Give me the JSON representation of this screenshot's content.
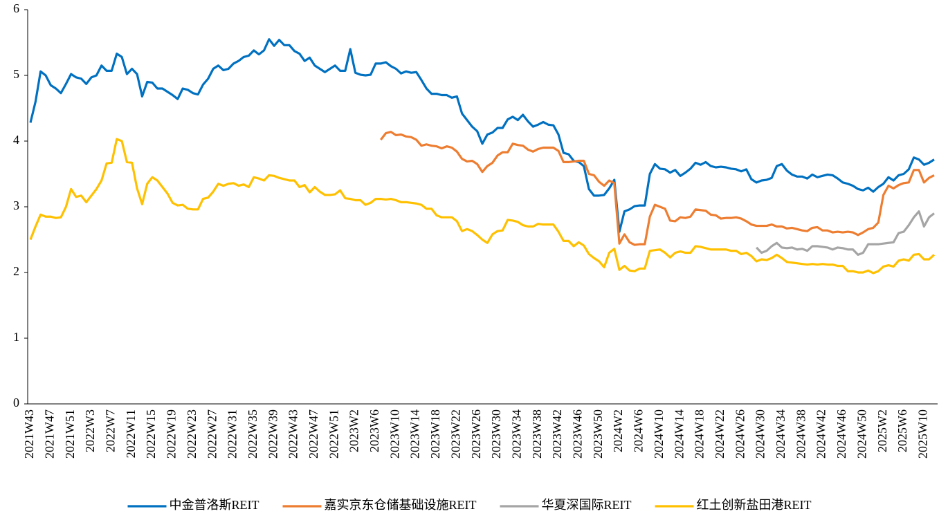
{
  "chart_data": {
    "type": "line",
    "categories": [
      "2021W43",
      null,
      null,
      null,
      "2021W47",
      null,
      null,
      null,
      "2021W51",
      null,
      null,
      null,
      "2022W3",
      null,
      null,
      null,
      "2022W7",
      null,
      null,
      null,
      "2022W11",
      null,
      null,
      null,
      "2022W15",
      null,
      null,
      null,
      "2022W19",
      null,
      null,
      null,
      "2022W23",
      null,
      null,
      null,
      "2022W27",
      null,
      null,
      null,
      "2022W31",
      null,
      null,
      null,
      "2022W35",
      null,
      null,
      null,
      "2022W39",
      null,
      null,
      null,
      "2022W43",
      null,
      null,
      null,
      "2022W47",
      null,
      null,
      null,
      "2022W51",
      null,
      null,
      null,
      "2023W2",
      null,
      null,
      null,
      "2023W6",
      null,
      null,
      null,
      "2023W10",
      null,
      null,
      null,
      "2023W14",
      null,
      null,
      null,
      "2023W18",
      null,
      null,
      null,
      "2023W22",
      null,
      null,
      null,
      "2023W26",
      null,
      null,
      null,
      "2023W30",
      null,
      null,
      null,
      "2023W34",
      null,
      null,
      null,
      "2023W38",
      null,
      null,
      null,
      "2023W42",
      null,
      null,
      null,
      "2023W46",
      null,
      null,
      null,
      "2023W50",
      null,
      null,
      null,
      "2024W2",
      null,
      null,
      null,
      "2024W6",
      null,
      null,
      null,
      "2024W10",
      null,
      null,
      null,
      "2024W14",
      null,
      null,
      null,
      "2024W18",
      null,
      null,
      null,
      "2024W22",
      null,
      null,
      null,
      "2024W26",
      null,
      null,
      null,
      "2024W30",
      null,
      null,
      null,
      "2024W34",
      null,
      null,
      null,
      "2024W38",
      null,
      null,
      null,
      "2024W42",
      null,
      null,
      null,
      "2024W46",
      null,
      null,
      null,
      "2024W50",
      null,
      null,
      null,
      "2025W2",
      null,
      null,
      null,
      "2025W6",
      null,
      null,
      null,
      "2025W10",
      null,
      null
    ],
    "series": [
      {
        "name": "中金普洛斯REIT",
        "color": "#0070c0",
        "values": [
          4.28,
          4.6,
          5.06,
          5.0,
          4.85,
          4.8,
          4.73,
          4.87,
          5.02,
          4.97,
          4.95,
          4.87,
          4.97,
          5.0,
          5.15,
          5.07,
          5.07,
          5.33,
          5.28,
          5.02,
          5.1,
          5.02,
          4.68,
          4.9,
          4.89,
          4.8,
          4.8,
          4.75,
          4.7,
          4.64,
          4.8,
          4.78,
          4.73,
          4.71,
          4.86,
          4.95,
          5.1,
          5.15,
          5.08,
          5.1,
          5.18,
          5.22,
          5.28,
          5.3,
          5.38,
          5.32,
          5.38,
          5.55,
          5.45,
          5.54,
          5.46,
          5.46,
          5.37,
          5.33,
          5.22,
          5.27,
          5.15,
          5.1,
          5.05,
          5.1,
          5.15,
          5.07,
          5.07,
          5.4,
          5.04,
          5.01,
          5.0,
          5.01,
          5.18,
          5.18,
          5.2,
          5.14,
          5.1,
          5.03,
          5.06,
          5.04,
          5.05,
          4.93,
          4.8,
          4.72,
          4.72,
          4.7,
          4.7,
          4.66,
          4.68,
          4.42,
          4.32,
          4.22,
          4.15,
          3.96,
          4.1,
          4.13,
          4.2,
          4.2,
          4.33,
          4.37,
          4.32,
          4.4,
          4.3,
          4.22,
          4.25,
          4.29,
          4.25,
          4.24,
          4.1,
          3.82,
          3.8,
          3.7,
          3.68,
          3.62,
          3.27,
          3.17,
          3.17,
          3.18,
          3.28,
          3.41,
          2.62,
          2.93,
          2.96,
          3.01,
          3.02,
          3.02,
          3.5,
          3.65,
          3.58,
          3.57,
          3.52,
          3.56,
          3.47,
          3.52,
          3.58,
          3.67,
          3.64,
          3.68,
          3.62,
          3.6,
          3.61,
          3.6,
          3.58,
          3.57,
          3.54,
          3.57,
          3.42,
          3.37,
          3.4,
          3.41,
          3.44,
          3.62,
          3.65,
          3.55,
          3.49,
          3.46,
          3.46,
          3.43,
          3.49,
          3.45,
          3.47,
          3.49,
          3.48,
          3.43,
          3.37,
          3.35,
          3.32,
          3.27,
          3.25,
          3.29,
          3.23,
          3.3,
          3.35,
          3.45,
          3.4,
          3.48,
          3.5,
          3.57,
          3.75,
          3.72,
          3.64,
          3.67,
          3.72
        ]
      },
      {
        "name": "嘉实京东仓储基础设施REIT",
        "color": "#ed7d31",
        "values": [
          null,
          null,
          null,
          null,
          null,
          null,
          null,
          null,
          null,
          null,
          null,
          null,
          null,
          null,
          null,
          null,
          null,
          null,
          null,
          null,
          null,
          null,
          null,
          null,
          null,
          null,
          null,
          null,
          null,
          null,
          null,
          null,
          null,
          null,
          null,
          null,
          null,
          null,
          null,
          null,
          null,
          null,
          null,
          null,
          null,
          null,
          null,
          null,
          null,
          null,
          null,
          null,
          null,
          null,
          null,
          null,
          null,
          null,
          null,
          null,
          null,
          null,
          null,
          null,
          null,
          null,
          null,
          null,
          null,
          4.02,
          4.12,
          4.14,
          4.09,
          4.1,
          4.07,
          4.06,
          4.02,
          3.93,
          3.95,
          3.93,
          3.92,
          3.89,
          3.92,
          3.9,
          3.84,
          3.73,
          3.69,
          3.7,
          3.65,
          3.53,
          3.62,
          3.67,
          3.78,
          3.83,
          3.83,
          3.96,
          3.94,
          3.93,
          3.87,
          3.84,
          3.88,
          3.9,
          3.9,
          3.9,
          3.85,
          3.68,
          3.68,
          3.69,
          3.7,
          3.7,
          3.5,
          3.48,
          3.38,
          3.32,
          3.4,
          3.36,
          2.44,
          2.58,
          2.46,
          2.42,
          2.43,
          2.43,
          2.85,
          3.03,
          3.0,
          2.97,
          2.79,
          2.78,
          2.84,
          2.83,
          2.85,
          2.96,
          2.95,
          2.94,
          2.88,
          2.87,
          2.82,
          2.83,
          2.83,
          2.84,
          2.82,
          2.78,
          2.73,
          2.71,
          2.71,
          2.71,
          2.73,
          2.7,
          2.7,
          2.67,
          2.68,
          2.66,
          2.64,
          2.63,
          2.68,
          2.69,
          2.64,
          2.64,
          2.61,
          2.62,
          2.61,
          2.62,
          2.61,
          2.57,
          2.61,
          2.66,
          2.68,
          2.76,
          3.18,
          3.32,
          3.28,
          3.33,
          3.36,
          3.37,
          3.56,
          3.56,
          3.37,
          3.44,
          3.48
        ]
      },
      {
        "name": "华夏深国际REIT",
        "color": "#a5a5a5",
        "values": [
          null,
          null,
          null,
          null,
          null,
          null,
          null,
          null,
          null,
          null,
          null,
          null,
          null,
          null,
          null,
          null,
          null,
          null,
          null,
          null,
          null,
          null,
          null,
          null,
          null,
          null,
          null,
          null,
          null,
          null,
          null,
          null,
          null,
          null,
          null,
          null,
          null,
          null,
          null,
          null,
          null,
          null,
          null,
          null,
          null,
          null,
          null,
          null,
          null,
          null,
          null,
          null,
          null,
          null,
          null,
          null,
          null,
          null,
          null,
          null,
          null,
          null,
          null,
          null,
          null,
          null,
          null,
          null,
          null,
          null,
          null,
          null,
          null,
          null,
          null,
          null,
          null,
          null,
          null,
          null,
          null,
          null,
          null,
          null,
          null,
          null,
          null,
          null,
          null,
          null,
          null,
          null,
          null,
          null,
          null,
          null,
          null,
          null,
          null,
          null,
          null,
          null,
          null,
          null,
          null,
          null,
          null,
          null,
          null,
          null,
          null,
          null,
          null,
          null,
          null,
          null,
          null,
          null,
          null,
          null,
          null,
          null,
          null,
          null,
          null,
          null,
          null,
          null,
          null,
          null,
          null,
          null,
          null,
          null,
          null,
          null,
          null,
          null,
          null,
          null,
          null,
          null,
          null,
          2.38,
          2.3,
          2.33,
          2.4,
          2.45,
          2.38,
          2.37,
          2.38,
          2.35,
          2.36,
          2.33,
          2.4,
          2.4,
          2.39,
          2.38,
          2.35,
          2.38,
          2.37,
          2.35,
          2.35,
          2.27,
          2.3,
          2.43,
          2.43,
          2.43,
          2.44,
          2.45,
          2.46,
          2.6,
          2.62,
          2.72,
          2.84,
          2.93,
          2.7,
          2.84,
          2.9
        ]
      },
      {
        "name": "红土创新盐田港REIT",
        "color": "#ffc000",
        "values": [
          2.5,
          2.7,
          2.88,
          2.85,
          2.85,
          2.83,
          2.84,
          3.0,
          3.27,
          3.15,
          3.17,
          3.07,
          3.17,
          3.27,
          3.4,
          3.66,
          3.67,
          4.03,
          4.0,
          3.68,
          3.67,
          3.28,
          3.04,
          3.35,
          3.45,
          3.4,
          3.3,
          3.2,
          3.06,
          3.02,
          3.03,
          2.97,
          2.96,
          2.96,
          3.12,
          3.14,
          3.23,
          3.35,
          3.32,
          3.35,
          3.36,
          3.32,
          3.34,
          3.3,
          3.45,
          3.43,
          3.4,
          3.48,
          3.47,
          3.44,
          3.42,
          3.4,
          3.4,
          3.3,
          3.33,
          3.22,
          3.3,
          3.23,
          3.18,
          3.18,
          3.19,
          3.25,
          3.13,
          3.12,
          3.1,
          3.1,
          3.03,
          3.06,
          3.12,
          3.12,
          3.11,
          3.12,
          3.1,
          3.07,
          3.07,
          3.06,
          3.05,
          3.03,
          2.97,
          2.97,
          2.87,
          2.84,
          2.84,
          2.84,
          2.78,
          2.63,
          2.66,
          2.63,
          2.57,
          2.5,
          2.45,
          2.58,
          2.63,
          2.64,
          2.8,
          2.79,
          2.77,
          2.72,
          2.7,
          2.7,
          2.74,
          2.73,
          2.73,
          2.73,
          2.62,
          2.48,
          2.48,
          2.4,
          2.46,
          2.41,
          2.28,
          2.22,
          2.17,
          2.08,
          2.3,
          2.36,
          2.04,
          2.1,
          2.03,
          2.02,
          2.06,
          2.06,
          2.33,
          2.34,
          2.35,
          2.3,
          2.23,
          2.3,
          2.32,
          2.3,
          2.3,
          2.4,
          2.39,
          2.37,
          2.35,
          2.35,
          2.35,
          2.35,
          2.33,
          2.33,
          2.28,
          2.3,
          2.25,
          2.17,
          2.2,
          2.19,
          2.22,
          2.27,
          2.22,
          2.16,
          2.15,
          2.14,
          2.13,
          2.12,
          2.13,
          2.12,
          2.13,
          2.12,
          2.12,
          2.1,
          2.1,
          2.02,
          2.02,
          2.0,
          2.0,
          2.03,
          1.99,
          2.02,
          2.09,
          2.11,
          2.09,
          2.18,
          2.2,
          2.18,
          2.27,
          2.28,
          2.2,
          2.2,
          2.27
        ]
      }
    ],
    "ylim": [
      0,
      6
    ],
    "yticks": [
      0,
      1,
      2,
      3,
      4,
      5,
      6
    ],
    "legend": "bottom"
  }
}
